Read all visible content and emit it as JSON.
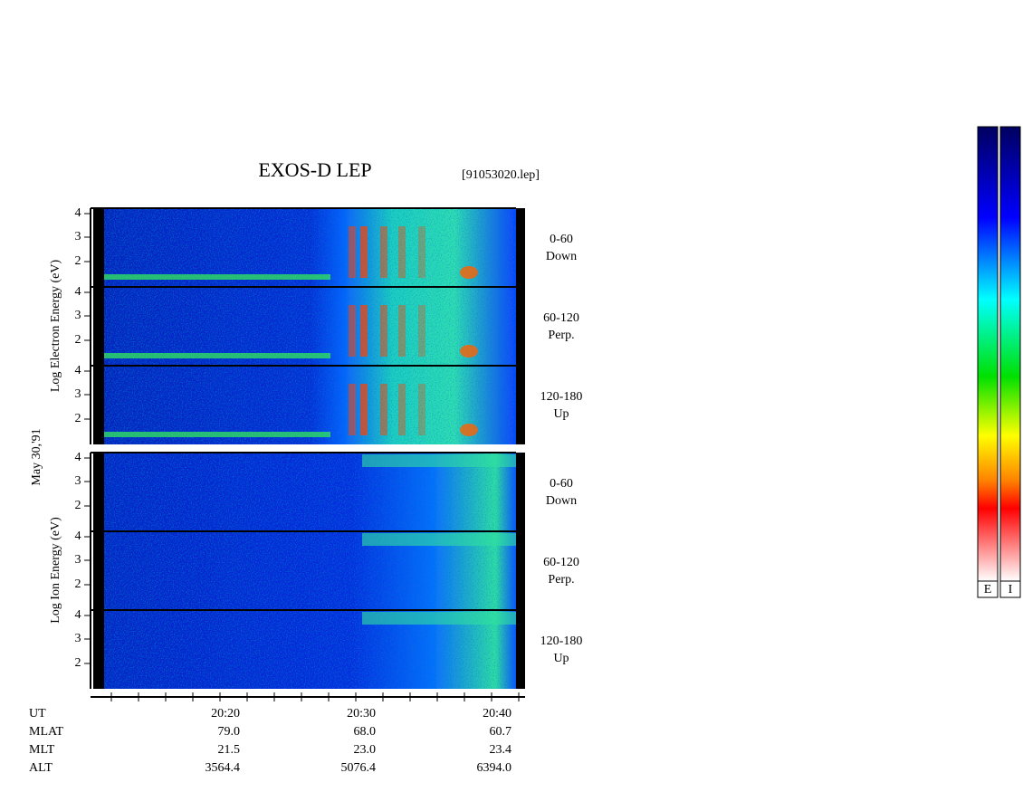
{
  "header": {
    "title": "EXOS-D LEP",
    "file": "[91053020.lep]"
  },
  "date": "May 30,'91",
  "groups": [
    {
      "label": "Log  Electron  Energy  (eV)",
      "panels": [
        {
          "angle": "0-60",
          "direction": "Down"
        },
        {
          "angle": "60-120",
          "direction": "Perp."
        },
        {
          "angle": "120-180",
          "direction": "Up"
        }
      ]
    },
    {
      "label": "Log  Ion  Energy  (eV)",
      "panels": [
        {
          "angle": "0-60",
          "direction": "Down"
        },
        {
          "angle": "60-120",
          "direction": "Perp."
        },
        {
          "angle": "120-180",
          "direction": "Up"
        }
      ]
    }
  ],
  "energy_ticks": [
    "4",
    "3",
    "2"
  ],
  "time_axis": {
    "rows": [
      {
        "label": "UT",
        "values": [
          "20:20",
          "20:30",
          "20:40"
        ]
      },
      {
        "label": "MLAT",
        "values": [
          "79.0",
          "68.0",
          "60.7"
        ]
      },
      {
        "label": "MLT",
        "values": [
          "21.5",
          "23.0",
          "23.4"
        ]
      },
      {
        "label": "ALT",
        "values": [
          "3564.4",
          "5076.4",
          "6394.0"
        ]
      }
    ]
  },
  "colorbars": [
    "E",
    "I"
  ]
}
